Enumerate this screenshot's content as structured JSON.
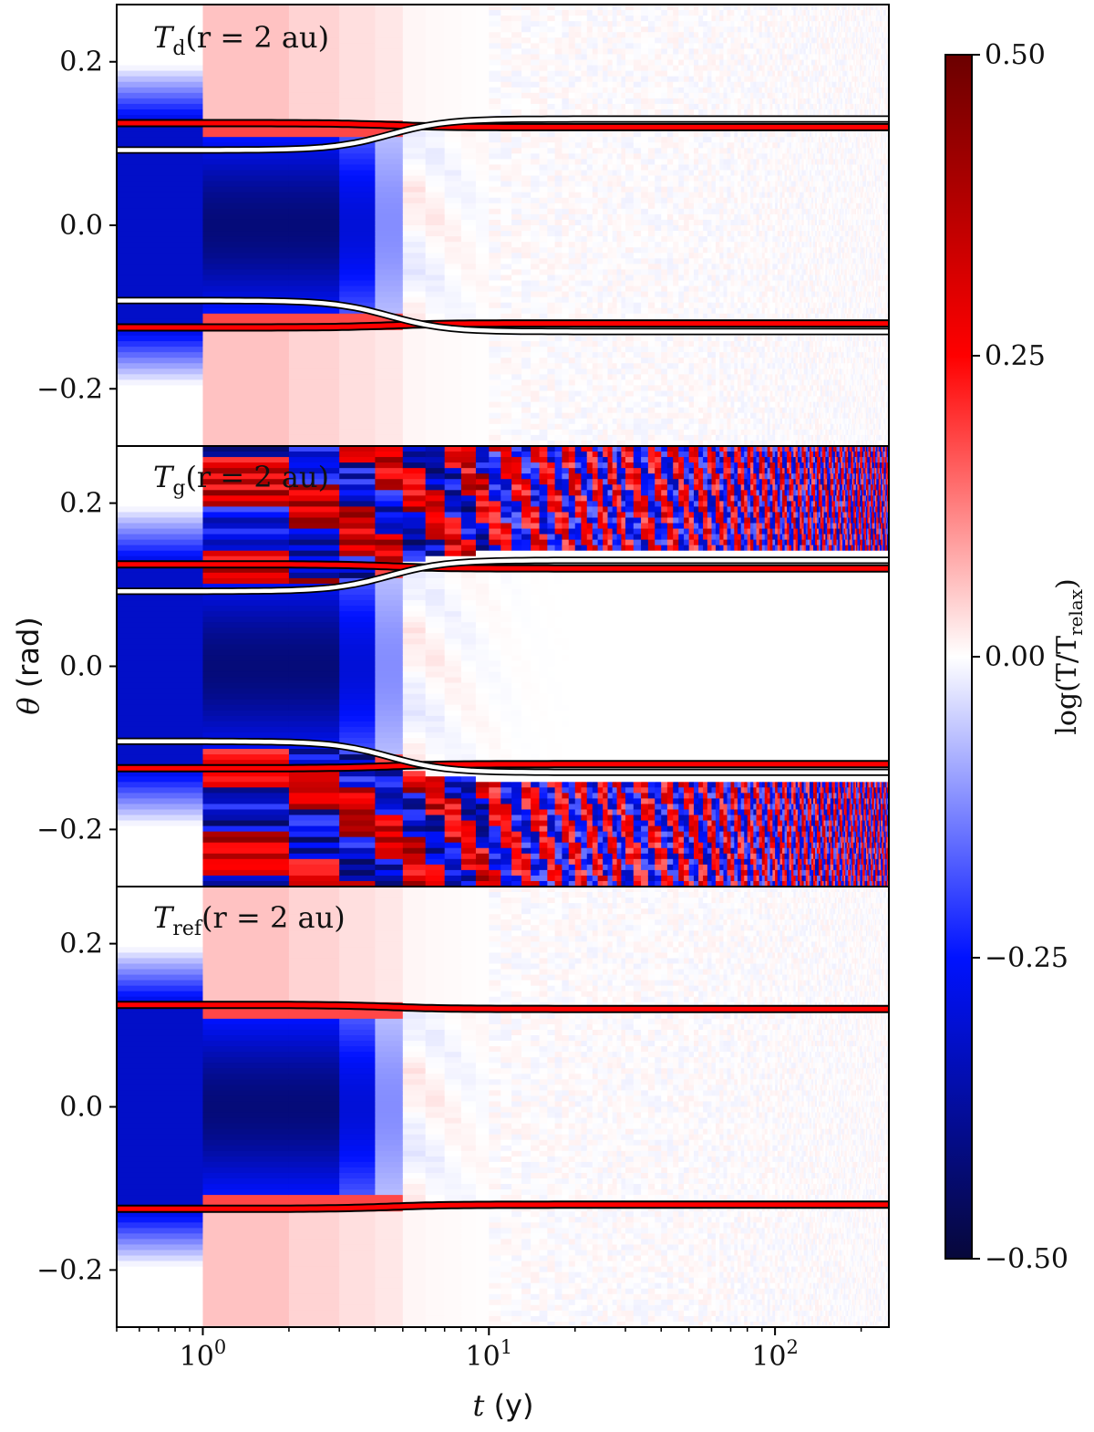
{
  "chart_data": {
    "type": "heatmap",
    "panels": [
      {
        "id": "Td",
        "title_main": "T",
        "title_sub": "d",
        "title_rest": "(r = 2 au)",
        "has_white_curve": true,
        "gas_noise": false,
        "color": "blue-white-red"
      },
      {
        "id": "Tg",
        "title_main": "T",
        "title_sub": "g",
        "title_rest": "(r = 2 au)",
        "has_white_curve": true,
        "gas_noise": true,
        "color": "blue-white-red"
      },
      {
        "id": "Tref",
        "title_main": "T",
        "title_sub": "ref",
        "title_rest": "(r = 2 au)",
        "has_white_curve": false,
        "gas_noise": false,
        "color": "blue-white-red"
      }
    ],
    "x_axis": {
      "label_main": "t",
      "label_unit": " (y)",
      "scale": "log",
      "range": [
        0.5,
        250
      ],
      "ticks": [
        {
          "value": 1,
          "base": "10",
          "exp": "0"
        },
        {
          "value": 10,
          "base": "10",
          "exp": "1"
        },
        {
          "value": 100,
          "base": "10",
          "exp": "2"
        }
      ]
    },
    "y_axis": {
      "label_main": "θ",
      "label_unit": " (rad)",
      "range": [
        -0.27,
        0.27
      ],
      "ticks": [
        "0.2",
        "0.0",
        "−0.2"
      ],
      "tick_values": [
        0.2,
        0.0,
        -0.2
      ]
    },
    "colorbar": {
      "label": "log(T/T",
      "label_sub": "relax",
      "label_end": ")",
      "range": [
        -0.5,
        0.5
      ],
      "ticks": [
        "0.50",
        "0.25",
        "0.00",
        "−0.25",
        "−0.50"
      ],
      "tick_values": [
        0.5,
        0.25,
        0.0,
        -0.25,
        -0.5
      ],
      "colors": {
        "low": "#07083a",
        "mid_low": "#0012ff",
        "mid": "#ffffff",
        "mid_high": "#ff0000",
        "high": "#6b0000"
      }
    },
    "boundary_curves": {
      "red_outline_theta_early": 0.125,
      "red_outline_theta_late": 0.12,
      "white_theta_early": 0.092,
      "white_theta_late": 0.13,
      "transition_t": 4.5
    }
  }
}
